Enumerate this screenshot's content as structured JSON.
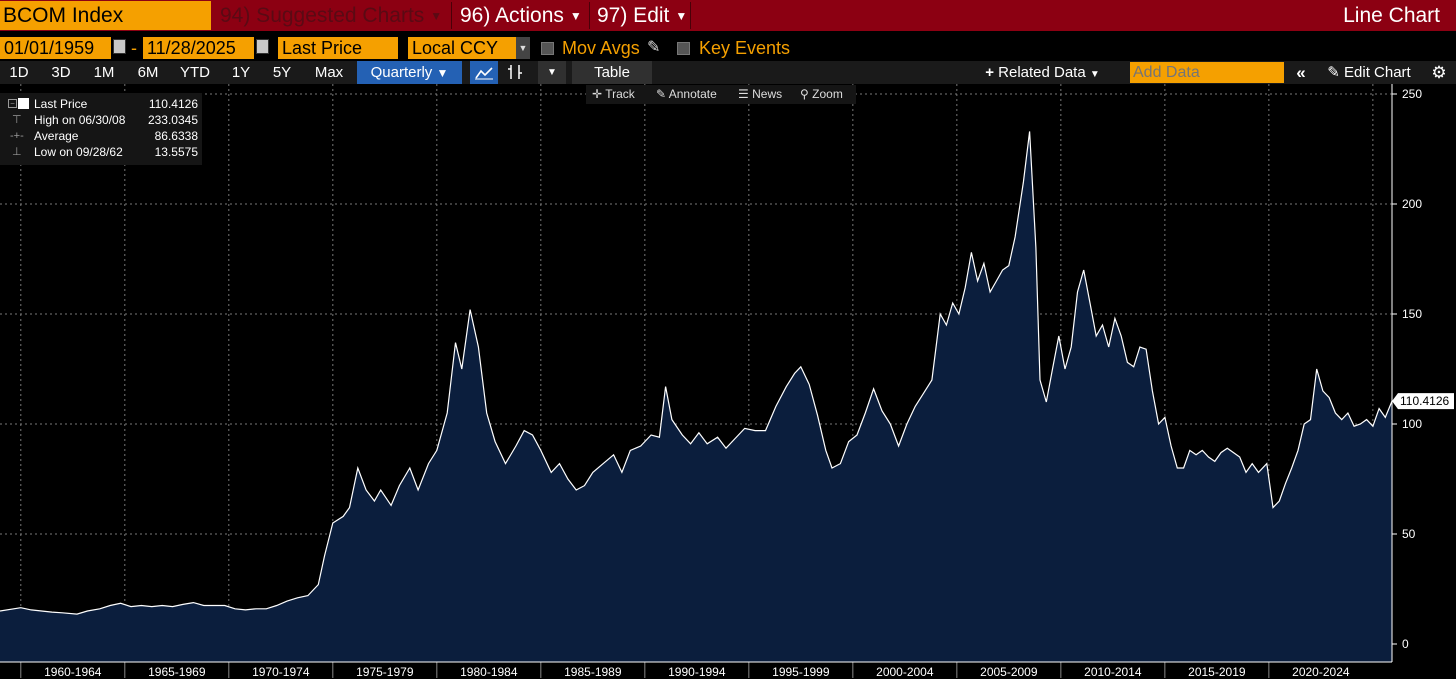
{
  "title_bar": {
    "ticker": "BCOM Index",
    "menu_94": "94) Suggested Charts",
    "menu_96": "96) Actions",
    "menu_97": "97) Edit",
    "chart_kind": "Line Chart"
  },
  "controls": {
    "start_date": "01/01/1959",
    "date_sep": "-",
    "end_date": "11/28/2025",
    "field": "Last Price",
    "currency": "Local CCY",
    "mov_avgs": "Mov Avgs",
    "key_events": "Key Events"
  },
  "toolbar": {
    "periods": [
      "1D",
      "3D",
      "1M",
      "6M",
      "YTD",
      "1Y",
      "5Y",
      "Max"
    ],
    "frequency": "Quarterly",
    "table": "Table",
    "related_data": "Related Data",
    "add_data_placeholder": "Add Data",
    "edit_chart": "Edit Chart"
  },
  "chart_tools": {
    "track": "Track",
    "annotate": "Annotate",
    "news": "News",
    "zoom": "Zoom"
  },
  "legend": [
    {
      "label": "Last Price",
      "value": "110.4126"
    },
    {
      "label": "High on 06/30/08",
      "value": "233.0345"
    },
    {
      "label": "Average",
      "value": "86.6338"
    },
    {
      "label": "Low on 09/28/62",
      "value": "13.5575"
    }
  ],
  "last_value_tag": "110.4126",
  "colors": {
    "title_bar": "#8c0012",
    "accent_orange": "#f5a000",
    "selected_blue": "#2461b4",
    "area_fill": "#0b1e3d",
    "line": "#ffffff"
  },
  "chart_data": {
    "type": "area",
    "ylim": [
      0,
      250
    ],
    "y_ticks": [
      0,
      50,
      100,
      150,
      200,
      250
    ],
    "x_range": [
      1959,
      2025.92
    ],
    "x_tick_labels": [
      "1960-1964",
      "1965-1969",
      "1970-1974",
      "1975-1979",
      "1980-1984",
      "1985-1989",
      "1990-1994",
      "1995-1999",
      "2000-2004",
      "2005-2009",
      "2010-2014",
      "2015-2019",
      "2020-2024"
    ],
    "series": [
      {
        "frequency": "Quarterly",
        "points": [
          [
            1959.0,
            15.0
          ],
          [
            1960.0,
            16.5
          ],
          [
            1960.5,
            15.5
          ],
          [
            1961.0,
            15.0
          ],
          [
            1961.5,
            14.5
          ],
          [
            1962.0,
            14.2
          ],
          [
            1962.7,
            13.6
          ],
          [
            1963.2,
            15.0
          ],
          [
            1963.8,
            16.0
          ],
          [
            1964.3,
            17.5
          ],
          [
            1964.8,
            18.5
          ],
          [
            1965.3,
            17.0
          ],
          [
            1965.8,
            17.5
          ],
          [
            1966.3,
            17.0
          ],
          [
            1966.8,
            17.5
          ],
          [
            1967.3,
            17.0
          ],
          [
            1967.8,
            18.0
          ],
          [
            1968.3,
            18.8
          ],
          [
            1968.8,
            17.5
          ],
          [
            1969.3,
            17.5
          ],
          [
            1969.8,
            17.5
          ],
          [
            1970.3,
            16.0
          ],
          [
            1970.8,
            15.5
          ],
          [
            1971.3,
            16.0
          ],
          [
            1971.8,
            16.0
          ],
          [
            1972.3,
            17.5
          ],
          [
            1972.8,
            19.5
          ],
          [
            1973.3,
            21.0
          ],
          [
            1973.8,
            22.0
          ],
          [
            1974.3,
            27.0
          ],
          [
            1974.6,
            40.0
          ],
          [
            1975.0,
            55.0
          ],
          [
            1975.5,
            58.0
          ],
          [
            1975.8,
            62.0
          ],
          [
            1976.2,
            80.0
          ],
          [
            1976.6,
            70.0
          ],
          [
            1977.0,
            65.0
          ],
          [
            1977.3,
            70.0
          ],
          [
            1977.8,
            63.0
          ],
          [
            1978.2,
            72.0
          ],
          [
            1978.7,
            80.0
          ],
          [
            1979.1,
            70.0
          ],
          [
            1979.6,
            82.0
          ],
          [
            1980.0,
            88.0
          ],
          [
            1980.5,
            105.0
          ],
          [
            1980.9,
            137.0
          ],
          [
            1981.2,
            125.0
          ],
          [
            1981.6,
            152.0
          ],
          [
            1982.0,
            135.0
          ],
          [
            1982.4,
            105.0
          ],
          [
            1982.8,
            92.0
          ],
          [
            1983.3,
            82.0
          ],
          [
            1983.8,
            90.0
          ],
          [
            1984.2,
            97.0
          ],
          [
            1984.6,
            95.0
          ],
          [
            1985.0,
            88.0
          ],
          [
            1985.5,
            78.0
          ],
          [
            1985.9,
            82.0
          ],
          [
            1986.3,
            75.0
          ],
          [
            1986.7,
            70.0
          ],
          [
            1987.1,
            72.0
          ],
          [
            1987.5,
            78.0
          ],
          [
            1988.0,
            82.0
          ],
          [
            1988.5,
            86.0
          ],
          [
            1988.9,
            78.0
          ],
          [
            1989.3,
            88.0
          ],
          [
            1989.8,
            90.0
          ],
          [
            1990.3,
            95.0
          ],
          [
            1990.7,
            94.0
          ],
          [
            1991.0,
            117.0
          ],
          [
            1991.3,
            102.0
          ],
          [
            1991.8,
            95.0
          ],
          [
            1992.2,
            91.0
          ],
          [
            1992.6,
            96.0
          ],
          [
            1993.0,
            91.0
          ],
          [
            1993.5,
            94.0
          ],
          [
            1993.9,
            89.0
          ],
          [
            1994.3,
            93.0
          ],
          [
            1994.8,
            98.0
          ],
          [
            1995.3,
            97.0
          ],
          [
            1995.8,
            97.0
          ],
          [
            1996.3,
            108.0
          ],
          [
            1996.8,
            117.0
          ],
          [
            1997.2,
            123.0
          ],
          [
            1997.5,
            126.0
          ],
          [
            1997.9,
            118.0
          ],
          [
            1998.3,
            104.0
          ],
          [
            1998.7,
            88.0
          ],
          [
            1999.0,
            80.0
          ],
          [
            1999.4,
            82.0
          ],
          [
            1999.8,
            92.0
          ],
          [
            2000.2,
            95.0
          ],
          [
            2000.6,
            105.0
          ],
          [
            2001.0,
            116.0
          ],
          [
            2001.4,
            106.0
          ],
          [
            2001.8,
            100.0
          ],
          [
            2002.2,
            90.0
          ],
          [
            2002.6,
            100.0
          ],
          [
            2003.0,
            108.0
          ],
          [
            2003.4,
            114.0
          ],
          [
            2003.8,
            120.0
          ],
          [
            2004.2,
            150.0
          ],
          [
            2004.5,
            145.0
          ],
          [
            2004.8,
            155.0
          ],
          [
            2005.1,
            150.0
          ],
          [
            2005.4,
            162.0
          ],
          [
            2005.7,
            178.0
          ],
          [
            2006.0,
            165.0
          ],
          [
            2006.3,
            173.0
          ],
          [
            2006.6,
            160.0
          ],
          [
            2006.9,
            165.0
          ],
          [
            2007.2,
            170.0
          ],
          [
            2007.5,
            172.0
          ],
          [
            2007.8,
            185.0
          ],
          [
            2008.2,
            210.0
          ],
          [
            2008.5,
            233.0
          ],
          [
            2008.8,
            180.0
          ],
          [
            2009.0,
            120.0
          ],
          [
            2009.3,
            110.0
          ],
          [
            2009.6,
            125.0
          ],
          [
            2009.9,
            140.0
          ],
          [
            2010.2,
            125.0
          ],
          [
            2010.5,
            135.0
          ],
          [
            2010.8,
            160.0
          ],
          [
            2011.1,
            170.0
          ],
          [
            2011.4,
            155.0
          ],
          [
            2011.7,
            140.0
          ],
          [
            2012.0,
            145.0
          ],
          [
            2012.3,
            135.0
          ],
          [
            2012.6,
            148.0
          ],
          [
            2012.9,
            140.0
          ],
          [
            2013.2,
            128.0
          ],
          [
            2013.5,
            126.0
          ],
          [
            2013.8,
            135.0
          ],
          [
            2014.1,
            134.0
          ],
          [
            2014.4,
            115.0
          ],
          [
            2014.7,
            100.0
          ],
          [
            2015.0,
            103.0
          ],
          [
            2015.3,
            90.0
          ],
          [
            2015.6,
            80.0
          ],
          [
            2015.9,
            80.0
          ],
          [
            2016.2,
            88.0
          ],
          [
            2016.5,
            86.0
          ],
          [
            2016.8,
            88.0
          ],
          [
            2017.1,
            85.0
          ],
          [
            2017.4,
            83.0
          ],
          [
            2017.7,
            87.0
          ],
          [
            2018.0,
            89.0
          ],
          [
            2018.3,
            87.0
          ],
          [
            2018.6,
            85.0
          ],
          [
            2018.9,
            78.0
          ],
          [
            2019.2,
            82.0
          ],
          [
            2019.5,
            78.0
          ],
          [
            2019.9,
            82.0
          ],
          [
            2020.2,
            62.0
          ],
          [
            2020.5,
            65.0
          ],
          [
            2020.8,
            73.0
          ],
          [
            2021.1,
            80.0
          ],
          [
            2021.4,
            88.0
          ],
          [
            2021.7,
            100.0
          ],
          [
            2022.0,
            102.0
          ],
          [
            2022.3,
            125.0
          ],
          [
            2022.6,
            115.0
          ],
          [
            2022.9,
            112.0
          ],
          [
            2023.2,
            105.0
          ],
          [
            2023.5,
            102.0
          ],
          [
            2023.8,
            105.0
          ],
          [
            2024.1,
            99.0
          ],
          [
            2024.4,
            100.0
          ],
          [
            2024.7,
            102.0
          ],
          [
            2025.0,
            99.0
          ],
          [
            2025.3,
            107.0
          ],
          [
            2025.6,
            103.0
          ],
          [
            2025.92,
            110.4
          ]
        ]
      }
    ]
  }
}
